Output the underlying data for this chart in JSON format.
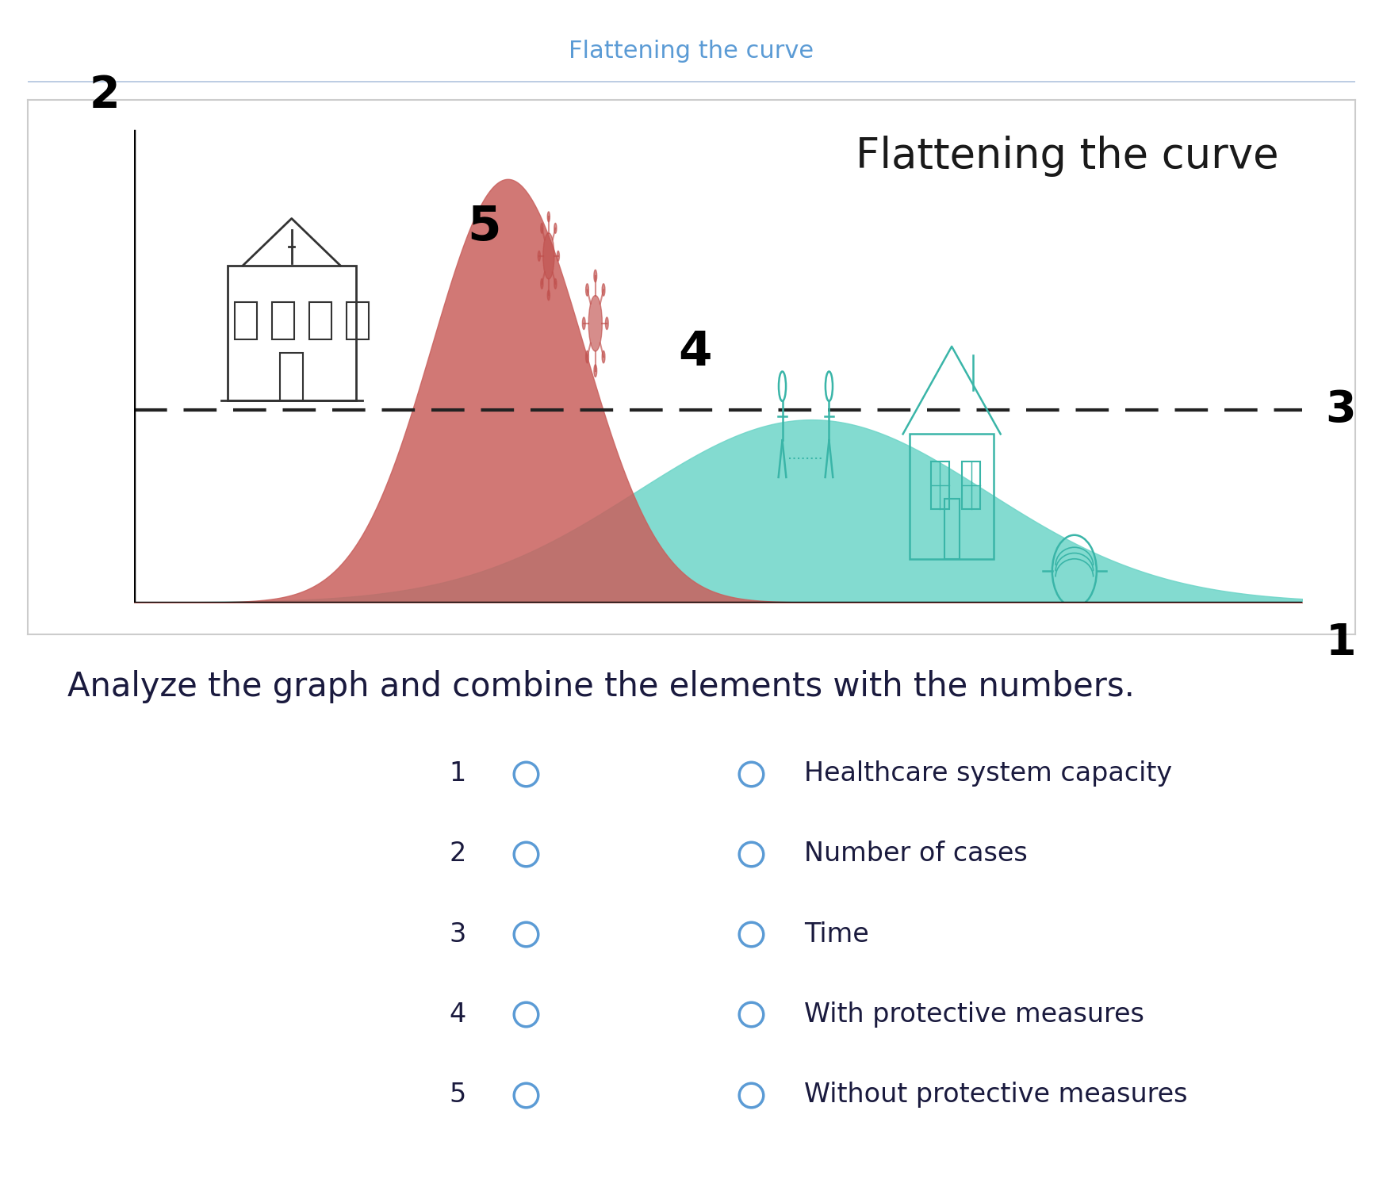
{
  "title_top": "Flattening the curve",
  "title_top_color": "#5b9bd5",
  "chart_title": "Flattening the curve",
  "chart_title_color": "#1a1a1a",
  "chart_title_fontsize": 38,
  "bg_color": "#ffffff",
  "chart_bg": "#ffffff",
  "curve_red_color": "#c9605d",
  "curve_red_alpha": 0.85,
  "curve_teal_color": "#6dd5c8",
  "curve_teal_alpha": 0.85,
  "dashed_line_color": "#222222",
  "dashed_line_y": 0.4,
  "instruction_text": "Analyze the graph and combine the elements with the numbers.",
  "instruction_color": "#1a1a3e",
  "instruction_fontsize": 30,
  "items": [
    {
      "number": "1",
      "label": "Healthcare system capacity"
    },
    {
      "number": "2",
      "label": "Number of cases"
    },
    {
      "number": "3",
      "label": "Time"
    },
    {
      "number": "4",
      "label": "With protective measures"
    },
    {
      "number": "5",
      "label": "Without protective measures"
    }
  ],
  "circle_color": "#5b9bd5",
  "item_fontsize": 24,
  "number_fontsize": 24
}
